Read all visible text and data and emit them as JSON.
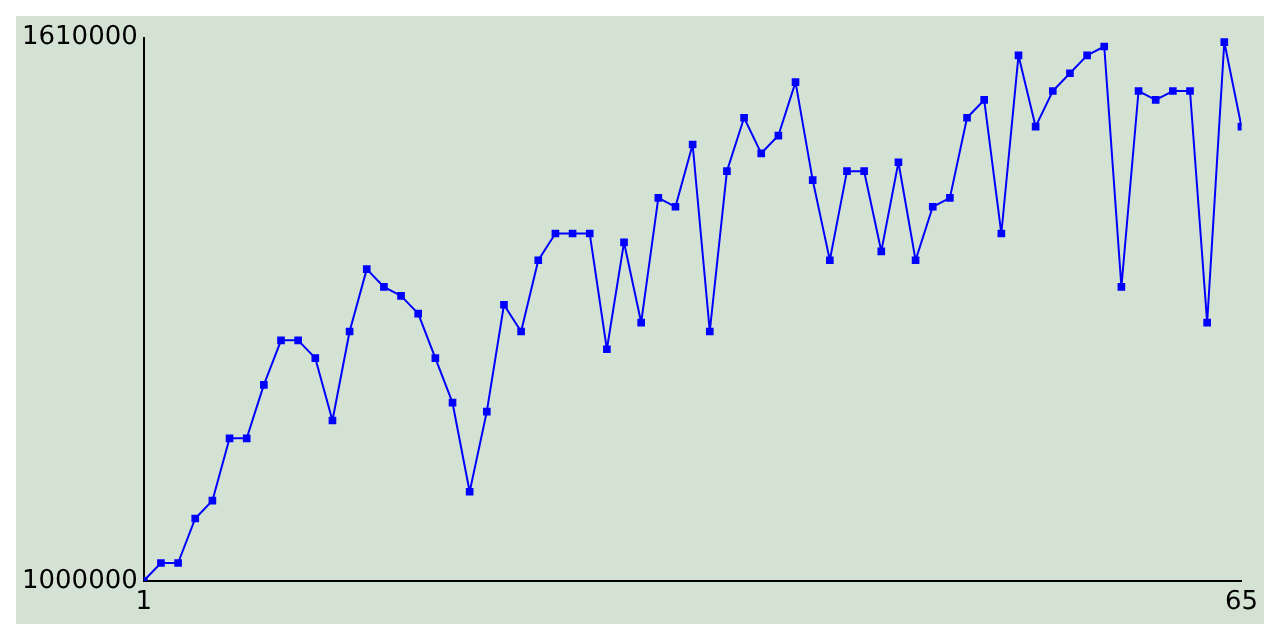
{
  "chart_data": {
    "type": "line",
    "x": [
      1,
      2,
      3,
      4,
      5,
      6,
      7,
      8,
      9,
      10,
      11,
      12,
      13,
      14,
      15,
      16,
      17,
      18,
      19,
      20,
      21,
      22,
      23,
      24,
      25,
      26,
      27,
      28,
      29,
      30,
      31,
      32,
      33,
      34,
      35,
      36,
      37,
      38,
      39,
      40,
      41,
      42,
      43,
      44,
      45,
      46,
      47,
      48,
      49,
      50,
      51,
      52,
      53,
      54,
      55,
      56,
      57,
      58,
      59,
      60,
      61,
      62,
      63,
      64,
      65
    ],
    "series": [
      {
        "color": "#0000ff",
        "values": [
          1000000,
          1020000,
          1020000,
          1070000,
          1090000,
          1160000,
          1160000,
          1220000,
          1270000,
          1270000,
          1250000,
          1180000,
          1280000,
          1350000,
          1330000,
          1320000,
          1300000,
          1250000,
          1200000,
          1100000,
          1190000,
          1310000,
          1280000,
          1360000,
          1390000,
          1390000,
          1390000,
          1260000,
          1380000,
          1290000,
          1430000,
          1420000,
          1490000,
          1280000,
          1460000,
          1520000,
          1480000,
          1500000,
          1560000,
          1450000,
          1360000,
          1460000,
          1460000,
          1370000,
          1470000,
          1360000,
          1420000,
          1430000,
          1520000,
          1540000,
          1390000,
          1590000,
          1510000,
          1550000,
          1570000,
          1590000,
          1600000,
          1330000,
          1550000,
          1540000,
          1550000,
          1550000,
          1290000,
          1605000,
          1510000
        ]
      }
    ],
    "xlim": [
      1,
      65
    ],
    "xticks": [
      1,
      65
    ],
    "ylim": [
      1000000,
      1610000
    ],
    "yticks": [
      1000000,
      1610000
    ],
    "grid": false,
    "legend": false,
    "marker": "square",
    "line_style": "solid"
  }
}
